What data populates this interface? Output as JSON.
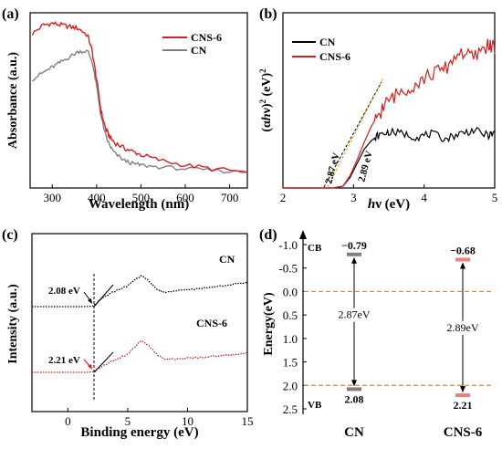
{
  "chart_data": [
    {
      "panel_label": "(a)",
      "type": "line",
      "xlabel": "Wavelength (nm)",
      "ylabel": "Absorbance (a.u.)",
      "xlim": [
        250,
        740
      ],
      "x_ticks": [
        "300",
        "400",
        "500",
        "600",
        "700"
      ],
      "legend_position": "top-right",
      "series": [
        {
          "name": "CNS-6",
          "color": "#d62020",
          "x": [
            255,
            280,
            300,
            320,
            340,
            360,
            380,
            390,
            400,
            410,
            420,
            430,
            440,
            460,
            480,
            500,
            540,
            600,
            660,
            740
          ],
          "y": [
            0.88,
            0.93,
            0.94,
            0.93,
            0.92,
            0.91,
            0.87,
            0.78,
            0.62,
            0.44,
            0.34,
            0.29,
            0.26,
            0.23,
            0.21,
            0.19,
            0.16,
            0.13,
            0.11,
            0.09
          ]
        },
        {
          "name": "CN",
          "color": "#808080",
          "x": [
            255,
            280,
            300,
            320,
            340,
            360,
            380,
            390,
            400,
            410,
            420,
            430,
            440,
            460,
            480,
            500,
            540,
            600,
            660,
            740
          ],
          "y": [
            0.62,
            0.66,
            0.69,
            0.72,
            0.75,
            0.78,
            0.78,
            0.72,
            0.58,
            0.41,
            0.3,
            0.24,
            0.2,
            0.16,
            0.14,
            0.13,
            0.12,
            0.11,
            0.1,
            0.09
          ]
        }
      ]
    },
    {
      "panel_label": "(b)",
      "type": "line",
      "xlabel": "hν (eV)",
      "ylabel": "(αhν)² (eV)²",
      "xlim": [
        2,
        5
      ],
      "x_ticks": [
        "2",
        "3",
        "4",
        "5"
      ],
      "legend_position": "top-left",
      "annotations": [
        "2.87 eV",
        "2.89 eV"
      ],
      "series": [
        {
          "name": "CN",
          "color": "#000000",
          "x": [
            2.0,
            2.7,
            2.85,
            2.95,
            3.05,
            3.15,
            3.25,
            3.35,
            3.5,
            3.7,
            3.9,
            4.1,
            4.3,
            4.5,
            4.7,
            4.9,
            5.0
          ],
          "y": [
            0.0,
            0.0,
            0.01,
            0.06,
            0.14,
            0.22,
            0.27,
            0.3,
            0.32,
            0.31,
            0.29,
            0.31,
            0.28,
            0.31,
            0.33,
            0.3,
            0.31
          ]
        },
        {
          "name": "CNS-6",
          "color": "#d62020",
          "x": [
            2.0,
            2.7,
            2.85,
            2.95,
            3.05,
            3.15,
            3.25,
            3.35,
            3.5,
            3.7,
            3.9,
            4.1,
            4.3,
            4.5,
            4.7,
            4.9,
            5.0
          ],
          "y": [
            0.0,
            0.0,
            0.01,
            0.07,
            0.16,
            0.26,
            0.35,
            0.42,
            0.5,
            0.56,
            0.6,
            0.65,
            0.68,
            0.78,
            0.74,
            0.82,
            0.8
          ]
        }
      ]
    },
    {
      "panel_label": "(c)",
      "type": "line",
      "xlabel": "Binding energy (eV)",
      "ylabel": "Intensity (a.u.)",
      "xlim": [
        -3,
        15
      ],
      "x_ticks": [
        "0",
        "5",
        "10",
        "15"
      ],
      "annotations": [
        "2.08 eV",
        "2.21 eV"
      ],
      "series": [
        {
          "name": "CN",
          "color": "#000000",
          "x": [
            -3,
            0,
            1.5,
            2.1,
            3.0,
            4.0,
            5.0,
            5.6,
            6.1,
            6.7,
            7.3,
            8.0,
            9.0,
            10.0,
            11.0,
            12.0,
            13.0,
            14.0,
            15.0
          ],
          "y": [
            0.0,
            0.0,
            0.0,
            0.01,
            0.17,
            0.29,
            0.38,
            0.5,
            0.56,
            0.49,
            0.34,
            0.26,
            0.29,
            0.31,
            0.33,
            0.36,
            0.38,
            0.42,
            0.44
          ]
        },
        {
          "name": "CNS-6",
          "color": "#d62020",
          "x": [
            -3,
            0,
            1.5,
            2.2,
            3.0,
            4.0,
            5.0,
            5.6,
            6.1,
            6.7,
            7.3,
            8.0,
            9.0,
            10.0,
            11.0,
            12.0,
            13.0,
            14.0,
            15.0
          ],
          "y": [
            0.0,
            0.0,
            0.0,
            0.01,
            0.13,
            0.23,
            0.33,
            0.46,
            0.58,
            0.5,
            0.36,
            0.24,
            0.24,
            0.26,
            0.27,
            0.29,
            0.31,
            0.33,
            0.35
          ]
        }
      ]
    },
    {
      "panel_label": "(d)",
      "type": "diagram",
      "ylabel": "Energy(eV)",
      "ylim": [
        -1.0,
        2.5
      ],
      "y_inverted": true,
      "y_ticks": [
        "-1.0",
        "-0.5",
        "0.0",
        "0.5",
        "1.0",
        "1.5",
        "2.0",
        "2.5"
      ],
      "band_edge_labels": {
        "cb": "CB",
        "vb": "VB"
      },
      "reference_lines": [
        0.0,
        2.0
      ],
      "materials": [
        {
          "name": "CN",
          "cb": -0.79,
          "vb": 2.08,
          "cb_label": "−0.79",
          "vb_label": "2.08",
          "gap_label": "2.87eV",
          "color": "#000000",
          "bar_color": "#808080"
        },
        {
          "name": "CNS-6",
          "cb": -0.68,
          "vb": 2.21,
          "cb_label": "−0.68",
          "vb_label": "2.21",
          "gap_label": "2.89eV",
          "color": "#d62020",
          "bar_color": "#e88080"
        }
      ]
    }
  ]
}
